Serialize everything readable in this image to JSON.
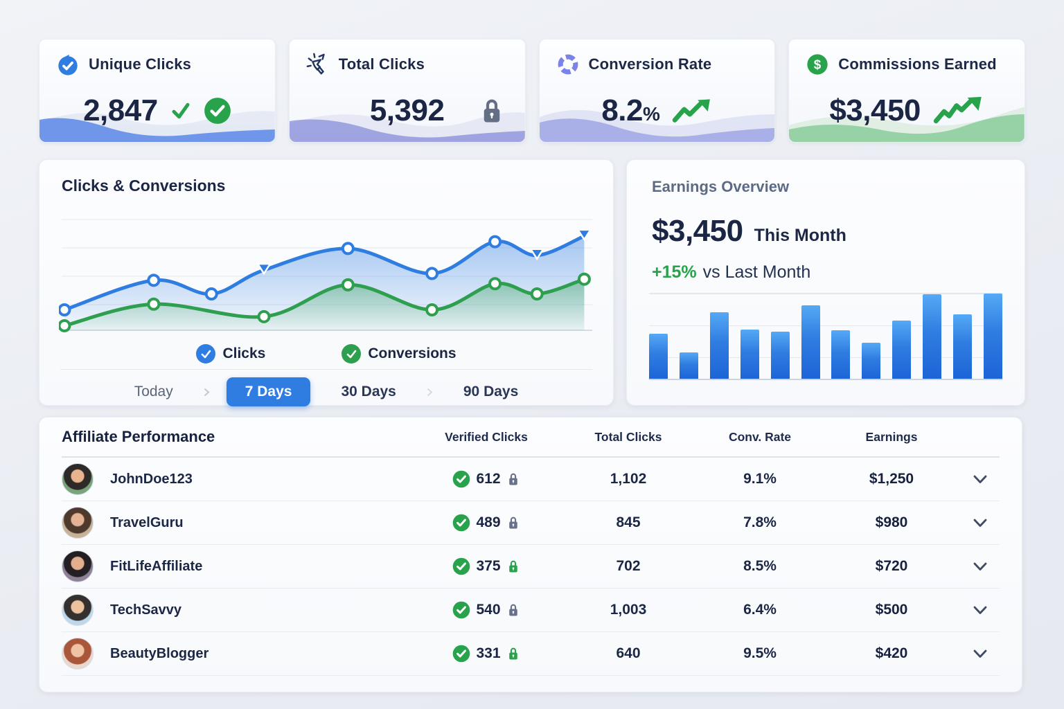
{
  "colors": {
    "navy": "#1d2847",
    "blue": "#2f7de1",
    "green": "#28a34c",
    "purple": "#7b82e8",
    "lock_gray": "#67718a"
  },
  "stat_cards": [
    {
      "title": "Unique Clicks",
      "value": "2,847",
      "icon": "badge-check-icon",
      "accent": "#2f7de1",
      "wave": "#5c87e8",
      "status_icons": [
        "check-icon",
        "check-circle-icon"
      ]
    },
    {
      "title": "Total Clicks",
      "value": "5,392",
      "icon": "cursor-click-icon",
      "accent": "#24355f",
      "wave": "#8d94dc",
      "status_icons": [
        "lock-icon"
      ]
    },
    {
      "title": "Conversion Rate",
      "value": "8.2",
      "suffix": "%",
      "icon": "segmented-circle-icon",
      "accent": "#7b82e8",
      "wave": "#9ba1e3",
      "status_icons": [
        "trend-up-icon"
      ]
    },
    {
      "title": "Commissions Earned",
      "value": "$3,450",
      "icon": "dollar-circle-icon",
      "accent": "#28a34c",
      "wave": "#7fc893",
      "status_icons": [
        "trend-up-icon"
      ]
    }
  ],
  "clicks_card": {
    "title": "Clicks & Conversions",
    "legend": [
      {
        "label": "Clicks",
        "color": "#2f7de1"
      },
      {
        "label": "Conversions",
        "color": "#2e9e4f"
      }
    ],
    "tabs": [
      {
        "label": "Today",
        "active": false
      },
      {
        "label": "7 Days",
        "active": true
      },
      {
        "label": "30 Days",
        "active": false
      },
      {
        "label": "90 Days",
        "active": false
      }
    ]
  },
  "earnings_card": {
    "title": "Earnings Overview",
    "amount": "$3,450",
    "period": "This Month",
    "delta": "+15%",
    "delta_label": "vs Last Month",
    "bar_color": "#2f7de1"
  },
  "table": {
    "title": "Affiliate Performance",
    "columns": [
      "Verified Clicks",
      "Total Clicks",
      "Conv. Rate",
      "Earnings"
    ],
    "rows": [
      {
        "name": "JohnDoe123",
        "verified": "612",
        "lock": "gray",
        "total": "1,102",
        "rate": "9.1%",
        "earnings": "$1,250",
        "avatar": {
          "bg": "#7aa57c",
          "hair": "#2d2a27",
          "skin": "#e8b48e"
        }
      },
      {
        "name": "TravelGuru",
        "verified": "489",
        "lock": "gray",
        "total": "845",
        "rate": "7.8%",
        "earnings": "$980",
        "avatar": {
          "bg": "#c8b298",
          "hair": "#4e3a2c",
          "skin": "#e5b393"
        }
      },
      {
        "name": "FitLifeAffiliate",
        "verified": "375",
        "lock": "green",
        "total": "702",
        "rate": "8.5%",
        "earnings": "$720",
        "avatar": {
          "bg": "#8d8298",
          "hair": "#241f22",
          "skin": "#e2ae8c"
        }
      },
      {
        "name": "TechSavvy",
        "verified": "540",
        "lock": "gray",
        "total": "1,003",
        "rate": "6.4%",
        "earnings": "$500",
        "avatar": {
          "bg": "#bcd8ea",
          "hair": "#33302e",
          "skin": "#ecc39e"
        }
      },
      {
        "name": "BeautyBlogger",
        "verified": "331",
        "lock": "green",
        "total": "640",
        "rate": "9.5%",
        "earnings": "$420",
        "avatar": {
          "bg": "#e9d8ce",
          "hair": "#a9563a",
          "skin": "#f0c3a4"
        }
      }
    ]
  },
  "chart_data": [
    {
      "type": "line",
      "title": "Clicks & Conversions",
      "xlabel": "",
      "ylabel": "",
      "axis_labels_visible": false,
      "gridlines": 4,
      "legend_position": "bottom-center",
      "ylim": [
        0,
        100
      ],
      "series": [
        {
          "name": "Clicks",
          "color": "#2f7de1",
          "points": [
            [
              0,
              18,
              "circle"
            ],
            [
              17,
              44,
              "circle"
            ],
            [
              28,
              32,
              "circle"
            ],
            [
              38,
              53,
              "triangle"
            ],
            [
              54,
              72,
              "circle"
            ],
            [
              70,
              50,
              "circle"
            ],
            [
              82,
              78,
              "circle"
            ],
            [
              90,
              66,
              "triangle"
            ],
            [
              99,
              83,
              "triangle"
            ]
          ]
        },
        {
          "name": "Conversions",
          "color": "#2e9e4f",
          "points": [
            [
              0,
              4,
              "circle"
            ],
            [
              17,
              23,
              "circle"
            ],
            [
              38,
              12,
              "circle"
            ],
            [
              54,
              40,
              "circle"
            ],
            [
              70,
              18,
              "circle"
            ],
            [
              82,
              41,
              "circle"
            ],
            [
              90,
              32,
              "circle"
            ],
            [
              99,
              45,
              "circle"
            ]
          ]
        }
      ]
    },
    {
      "type": "bar",
      "title": "Earnings Overview",
      "xlabel": "",
      "ylabel": "",
      "categories": [
        "1",
        "2",
        "3",
        "4",
        "5",
        "6",
        "7",
        "8",
        "9",
        "10",
        "11",
        "12"
      ],
      "values": [
        53,
        31,
        78,
        58,
        55,
        86,
        57,
        42,
        68,
        99,
        76,
        100
      ],
      "ylim": [
        0,
        100
      ],
      "grid": true,
      "legend_position": "none"
    }
  ]
}
